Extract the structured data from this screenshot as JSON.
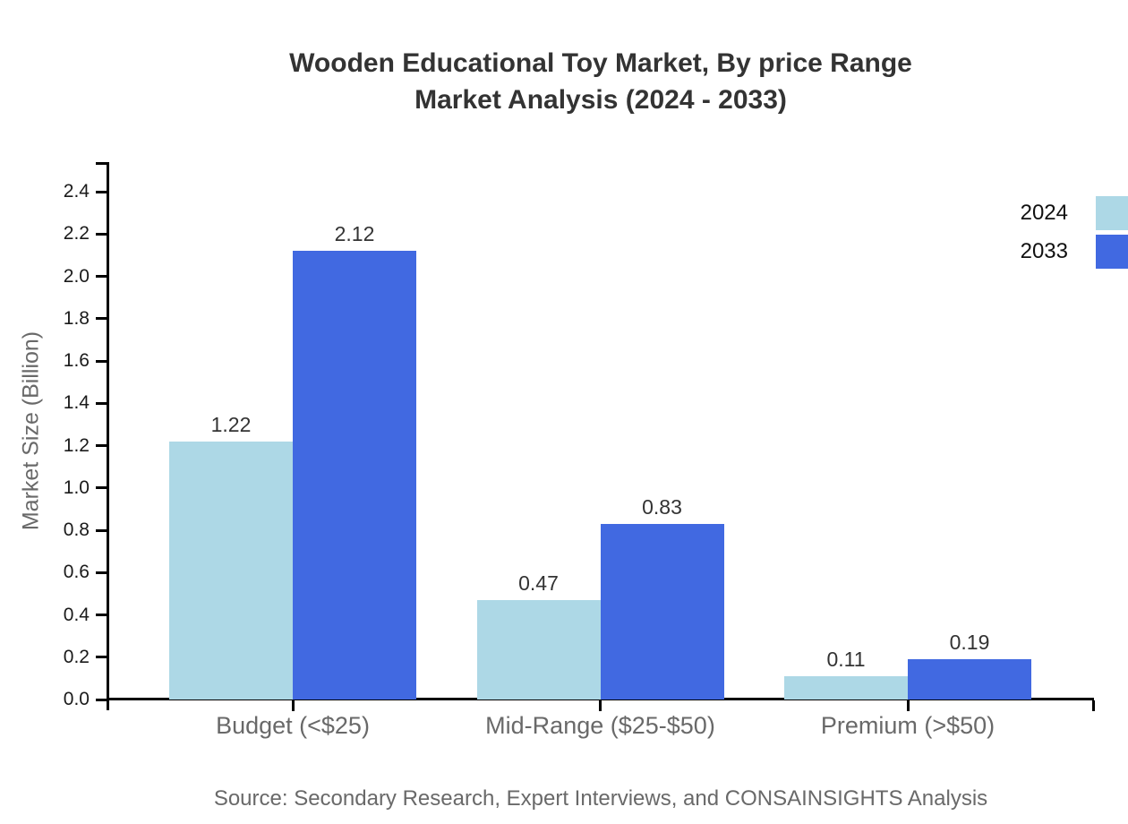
{
  "chart_data": {
    "type": "bar",
    "title": "Wooden Educational Toy Market, By price Range",
    "subtitle": "Market Analysis (2024 - 2033)",
    "ylabel": "Market Size (Billion)",
    "xlabel": "",
    "categories": [
      "Budget (<$25)",
      "Mid-Range ($25-$50)",
      "Premium (>$50)"
    ],
    "series": [
      {
        "name": "2024",
        "color": "#ADD8E6",
        "values": [
          1.22,
          0.47,
          0.11
        ],
        "labels": [
          "1.22",
          "0.47",
          "0.11"
        ]
      },
      {
        "name": "2033",
        "color": "#4169E1",
        "values": [
          2.12,
          0.83,
          0.19
        ],
        "labels": [
          "2.12",
          "0.83",
          "0.19"
        ]
      }
    ],
    "yticks": [
      "0.0",
      "0.2",
      "0.4",
      "0.6",
      "0.8",
      "1.0",
      "1.2",
      "1.4",
      "1.6",
      "1.8",
      "2.0",
      "2.2",
      "2.4"
    ],
    "ylim": [
      0,
      2.54
    ],
    "grid": false,
    "legend_position": "top-right",
    "source": "Source: Secondary Research, Expert Interviews, and CONSAINSIGHTS Analysis",
    "colors": {
      "series_2024": "#ADD8E6",
      "series_2033": "#4169E1",
      "axis": "#000000",
      "title_text": "#333333",
      "tick_label_text": "#1a1a1a",
      "gray_label_text": "#696969",
      "background": "#ffffff"
    }
  }
}
